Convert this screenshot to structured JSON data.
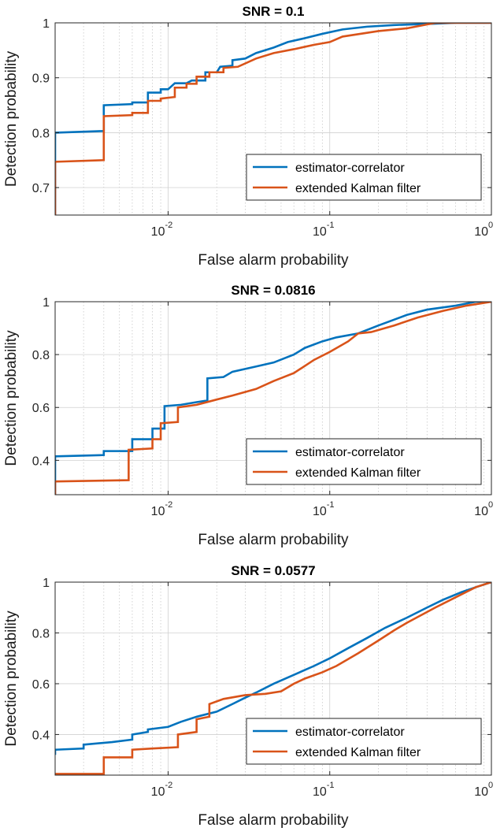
{
  "chart_data": [
    {
      "type": "line",
      "title": "SNR = 0.1",
      "xlabel": "False alarm probability",
      "ylabel": "Detection probability",
      "xscale": "log",
      "xlim": [
        0.002,
        1
      ],
      "ylim": [
        0.65,
        1
      ],
      "yticks": [
        0.7,
        0.8,
        0.9,
        1
      ],
      "ytick_labels": [
        "0.7",
        "0.8",
        "0.9",
        "1"
      ],
      "xticks": [
        0.01,
        0.1,
        1
      ],
      "xtick_labels": [
        {
          "base": "10",
          "exp": "-2"
        },
        {
          "base": "10",
          "exp": "-1"
        },
        {
          "base": "10",
          "exp": "0"
        }
      ],
      "legend_position": "bottom-right",
      "series": [
        {
          "name": "estimator-correlator",
          "color": "#0072BD",
          "points": [
            [
              0.002,
              0.65
            ],
            [
              0.002,
              0.8
            ],
            [
              0.004,
              0.803
            ],
            [
              0.004,
              0.85
            ],
            [
              0.006,
              0.852
            ],
            [
              0.006,
              0.855
            ],
            [
              0.0075,
              0.855
            ],
            [
              0.0075,
              0.873
            ],
            [
              0.009,
              0.873
            ],
            [
              0.009,
              0.879
            ],
            [
              0.01,
              0.879
            ],
            [
              0.011,
              0.89
            ],
            [
              0.013,
              0.89
            ],
            [
              0.014,
              0.895
            ],
            [
              0.017,
              0.895
            ],
            [
              0.017,
              0.91
            ],
            [
              0.02,
              0.91
            ],
            [
              0.021,
              0.92
            ],
            [
              0.025,
              0.922
            ],
            [
              0.025,
              0.932
            ],
            [
              0.03,
              0.935
            ],
            [
              0.035,
              0.945
            ],
            [
              0.045,
              0.955
            ],
            [
              0.055,
              0.965
            ],
            [
              0.07,
              0.972
            ],
            [
              0.09,
              0.98
            ],
            [
              0.12,
              0.988
            ],
            [
              0.17,
              0.993
            ],
            [
              0.25,
              0.996
            ],
            [
              0.4,
              0.998
            ],
            [
              0.6,
              1
            ],
            [
              1,
              1
            ]
          ]
        },
        {
          "name": "extended Kalman filter",
          "color": "#D95319",
          "points": [
            [
              0.002,
              0.65
            ],
            [
              0.002,
              0.747
            ],
            [
              0.004,
              0.75
            ],
            [
              0.004,
              0.83
            ],
            [
              0.006,
              0.832
            ],
            [
              0.006,
              0.836
            ],
            [
              0.0075,
              0.836
            ],
            [
              0.0075,
              0.858
            ],
            [
              0.009,
              0.858
            ],
            [
              0.009,
              0.862
            ],
            [
              0.011,
              0.865
            ],
            [
              0.011,
              0.882
            ],
            [
              0.013,
              0.882
            ],
            [
              0.013,
              0.889
            ],
            [
              0.015,
              0.889
            ],
            [
              0.015,
              0.902
            ],
            [
              0.018,
              0.902
            ],
            [
              0.018,
              0.91
            ],
            [
              0.022,
              0.91
            ],
            [
              0.022,
              0.918
            ],
            [
              0.027,
              0.92
            ],
            [
              0.035,
              0.935
            ],
            [
              0.045,
              0.945
            ],
            [
              0.06,
              0.952
            ],
            [
              0.08,
              0.96
            ],
            [
              0.1,
              0.965
            ],
            [
              0.12,
              0.975
            ],
            [
              0.2,
              0.985
            ],
            [
              0.3,
              0.99
            ],
            [
              0.45,
              1
            ],
            [
              1,
              1
            ]
          ]
        }
      ]
    },
    {
      "type": "line",
      "title": "SNR = 0.0816",
      "xlabel": "False alarm probability",
      "ylabel": "Detection probability",
      "xscale": "log",
      "xlim": [
        0.002,
        1
      ],
      "ylim": [
        0.27,
        1
      ],
      "yticks": [
        0.4,
        0.6,
        0.8,
        1
      ],
      "ytick_labels": [
        "0.4",
        "0.6",
        "0.8",
        "1"
      ],
      "xticks": [
        0.01,
        0.1,
        1
      ],
      "xtick_labels": [
        {
          "base": "10",
          "exp": "-2"
        },
        {
          "base": "10",
          "exp": "-1"
        },
        {
          "base": "10",
          "exp": "0"
        }
      ],
      "legend_position": "bottom-right",
      "series": [
        {
          "name": "estimator-correlator",
          "color": "#0072BD",
          "points": [
            [
              0.002,
              0.27
            ],
            [
              0.002,
              0.415
            ],
            [
              0.004,
              0.42
            ],
            [
              0.004,
              0.435
            ],
            [
              0.006,
              0.435
            ],
            [
              0.006,
              0.48
            ],
            [
              0.008,
              0.48
            ],
            [
              0.008,
              0.52
            ],
            [
              0.0095,
              0.52
            ],
            [
              0.0095,
              0.605
            ],
            [
              0.012,
              0.61
            ],
            [
              0.015,
              0.62
            ],
            [
              0.017,
              0.625
            ],
            [
              0.0175,
              0.625
            ],
            [
              0.0175,
              0.71
            ],
            [
              0.022,
              0.715
            ],
            [
              0.025,
              0.735
            ],
            [
              0.035,
              0.755
            ],
            [
              0.045,
              0.77
            ],
            [
              0.06,
              0.8
            ],
            [
              0.07,
              0.825
            ],
            [
              0.09,
              0.85
            ],
            [
              0.11,
              0.865
            ],
            [
              0.15,
              0.88
            ],
            [
              0.2,
              0.91
            ],
            [
              0.3,
              0.95
            ],
            [
              0.4,
              0.97
            ],
            [
              0.6,
              0.985
            ],
            [
              0.8,
              1
            ],
            [
              1,
              1
            ]
          ]
        },
        {
          "name": "extended Kalman filter",
          "color": "#D95319",
          "points": [
            [
              0.002,
              0.27
            ],
            [
              0.002,
              0.32
            ],
            [
              0.0057,
              0.325
            ],
            [
              0.0057,
              0.44
            ],
            [
              0.008,
              0.445
            ],
            [
              0.008,
              0.48
            ],
            [
              0.009,
              0.48
            ],
            [
              0.009,
              0.54
            ],
            [
              0.0115,
              0.545
            ],
            [
              0.0115,
              0.6
            ],
            [
              0.015,
              0.61
            ],
            [
              0.02,
              0.63
            ],
            [
              0.025,
              0.645
            ],
            [
              0.035,
              0.67
            ],
            [
              0.045,
              0.7
            ],
            [
              0.06,
              0.73
            ],
            [
              0.08,
              0.78
            ],
            [
              0.1,
              0.81
            ],
            [
              0.13,
              0.85
            ],
            [
              0.15,
              0.88
            ],
            [
              0.18,
              0.885
            ],
            [
              0.25,
              0.91
            ],
            [
              0.35,
              0.94
            ],
            [
              0.5,
              0.965
            ],
            [
              0.7,
              0.985
            ],
            [
              1,
              1
            ]
          ]
        }
      ]
    },
    {
      "type": "line",
      "title": "SNR = 0.0577",
      "xlabel": "False alarm probability",
      "ylabel": "Detection probability",
      "xscale": "log",
      "xlim": [
        0.002,
        1
      ],
      "ylim": [
        0.24,
        1
      ],
      "yticks": [
        0.4,
        0.6,
        0.8,
        1
      ],
      "ytick_labels": [
        "0.4",
        "0.6",
        "0.8",
        "1"
      ],
      "xticks": [
        0.01,
        0.1,
        1
      ],
      "xtick_labels": [
        {
          "base": "10",
          "exp": "-2"
        },
        {
          "base": "10",
          "exp": "-1"
        },
        {
          "base": "10",
          "exp": "0"
        }
      ],
      "legend_position": "bottom-right",
      "series": [
        {
          "name": "estimator-correlator",
          "color": "#0072BD",
          "points": [
            [
              0.002,
              0.32
            ],
            [
              0.002,
              0.34
            ],
            [
              0.003,
              0.345
            ],
            [
              0.003,
              0.36
            ],
            [
              0.0045,
              0.37
            ],
            [
              0.006,
              0.38
            ],
            [
              0.006,
              0.4
            ],
            [
              0.0075,
              0.41
            ],
            [
              0.0075,
              0.42
            ],
            [
              0.01,
              0.43
            ],
            [
              0.012,
              0.45
            ],
            [
              0.015,
              0.47
            ],
            [
              0.02,
              0.49
            ],
            [
              0.025,
              0.52
            ],
            [
              0.03,
              0.545
            ],
            [
              0.035,
              0.565
            ],
            [
              0.045,
              0.6
            ],
            [
              0.06,
              0.635
            ],
            [
              0.08,
              0.67
            ],
            [
              0.1,
              0.7
            ],
            [
              0.13,
              0.74
            ],
            [
              0.17,
              0.78
            ],
            [
              0.22,
              0.82
            ],
            [
              0.3,
              0.86
            ],
            [
              0.4,
              0.9
            ],
            [
              0.5,
              0.93
            ],
            [
              0.65,
              0.96
            ],
            [
              0.8,
              0.98
            ],
            [
              1,
              1
            ]
          ]
        },
        {
          "name": "extended Kalman filter",
          "color": "#D95319",
          "points": [
            [
              0.002,
              0.245
            ],
            [
              0.004,
              0.245
            ],
            [
              0.004,
              0.31
            ],
            [
              0.006,
              0.31
            ],
            [
              0.006,
              0.34
            ],
            [
              0.008,
              0.345
            ],
            [
              0.0115,
              0.35
            ],
            [
              0.0115,
              0.4
            ],
            [
              0.015,
              0.41
            ],
            [
              0.015,
              0.46
            ],
            [
              0.018,
              0.47
            ],
            [
              0.018,
              0.52
            ],
            [
              0.022,
              0.54
            ],
            [
              0.03,
              0.555
            ],
            [
              0.04,
              0.56
            ],
            [
              0.05,
              0.57
            ],
            [
              0.06,
              0.6
            ],
            [
              0.07,
              0.62
            ],
            [
              0.09,
              0.645
            ],
            [
              0.11,
              0.67
            ],
            [
              0.15,
              0.72
            ],
            [
              0.2,
              0.77
            ],
            [
              0.25,
              0.81
            ],
            [
              0.3,
              0.84
            ],
            [
              0.45,
              0.9
            ],
            [
              0.6,
              0.94
            ],
            [
              0.8,
              0.98
            ],
            [
              1,
              1
            ]
          ]
        }
      ]
    }
  ]
}
